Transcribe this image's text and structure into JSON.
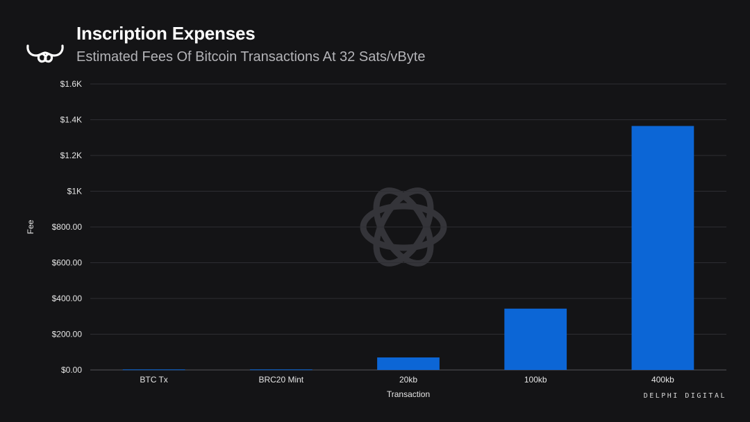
{
  "header": {
    "title": "Inscription Expenses",
    "subtitle": "Estimated Fees Of Bitcoin Transactions At 32 Sats/vByte"
  },
  "brand": {
    "name": "DELPHI DIGITAL",
    "logo_icon": "delphi-horns-logo"
  },
  "colors": {
    "background": "#141416",
    "bar": "#0c66d6",
    "grid": "#2e2e33",
    "text": "#e6e6e6"
  },
  "chart_data": {
    "type": "bar",
    "categories": [
      "BTC Tx",
      "BRC20 Mint",
      "20kb",
      "100kb",
      "400kb"
    ],
    "series": [
      {
        "values": [
          3,
          3,
          70,
          343,
          1365
        ]
      }
    ],
    "xlabel": "Transaction",
    "ylabel": "Fee",
    "ylim": [
      0,
      1600
    ],
    "yticks": [
      0,
      200,
      400,
      600,
      800,
      1000,
      1200,
      1400,
      1600
    ],
    "ytick_labels": [
      "$0.00",
      "$200.00",
      "$400.00",
      "$600.00",
      "$800.00",
      "$1K",
      "$1.2K",
      "$1.4K",
      "$1.6K"
    ],
    "grid": true,
    "legend": "none"
  }
}
